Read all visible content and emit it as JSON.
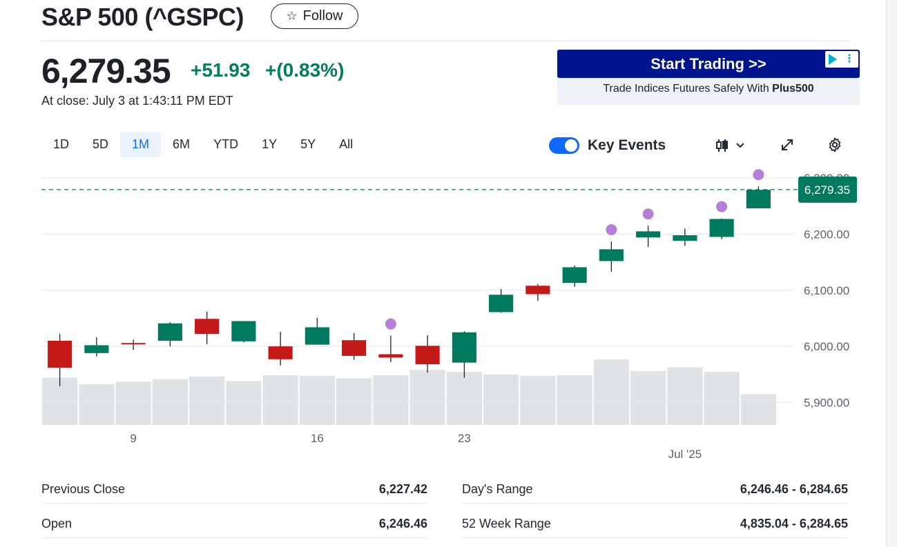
{
  "header": {
    "title": "S&P 500 (^GSPC)",
    "follow_label": "Follow"
  },
  "quote": {
    "price": "6,279.35",
    "change": "+51.93",
    "change_pct": "+(0.83%)",
    "close_time": "At close: July 3 at 1:43:11 PM EDT"
  },
  "ad": {
    "headline": "Start Trading >>",
    "subline_prefix": "Trade Indices Futures Safely With ",
    "subline_brand": "Plus500"
  },
  "ranges": [
    "1D",
    "5D",
    "1M",
    "6M",
    "YTD",
    "1Y",
    "5Y",
    "All"
  ],
  "active_range": "1M",
  "toolbar": {
    "key_events_label": "Key Events",
    "key_events_on": true
  },
  "colors": {
    "up": "#007a5e",
    "down": "#c61a1a",
    "event": "#b57fd9",
    "volume": "#e0e3e6",
    "grid": "#e6e8ea",
    "accent": "#0f69ff"
  },
  "chart_data": {
    "type": "candlestick",
    "ylim": [
      5860,
      6305
    ],
    "y_ticks": [
      "6,300.00",
      "6,200.00",
      "6,100.00",
      "6,000.00",
      "5,900.00"
    ],
    "y_tick_values": [
      6300,
      6200,
      6100,
      6000,
      5900
    ],
    "current_price_label": "6,279.35",
    "current_price": 6279.35,
    "x_labels": [
      {
        "label": "9",
        "index": 2.5
      },
      {
        "label": "16",
        "index": 7.5
      },
      {
        "label": "23",
        "index": 11.5
      },
      {
        "label": "Jul '25",
        "index": 17.5
      }
    ],
    "candles": [
      {
        "o": 6010,
        "h": 6022,
        "l": 5929,
        "c": 5962
      },
      {
        "o": 5988,
        "h": 6016,
        "l": 5982,
        "c": 6002
      },
      {
        "o": 6006,
        "h": 6012,
        "l": 5994,
        "c": 6004
      },
      {
        "o": 6010,
        "h": 6043,
        "l": 6000,
        "c": 6041
      },
      {
        "o": 6049,
        "h": 6062,
        "l": 6004,
        "c": 6022
      },
      {
        "o": 6009,
        "h": 6044,
        "l": 6007,
        "c": 6045
      },
      {
        "o": 6000,
        "h": 6026,
        "l": 5966,
        "c": 5977
      },
      {
        "o": 6003,
        "h": 6051,
        "l": 6003,
        "c": 6034
      },
      {
        "o": 6011,
        "h": 6024,
        "l": 5976,
        "c": 5983
      },
      {
        "o": 5986,
        "h": 6019,
        "l": 5972,
        "c": 5980
      },
      {
        "o": 6001,
        "h": 6020,
        "l": 5953,
        "c": 5968
      },
      {
        "o": 5971,
        "h": 6027,
        "l": 5944,
        "c": 6025
      },
      {
        "o": 6061,
        "h": 6102,
        "l": 6060,
        "c": 6092
      },
      {
        "o": 6108,
        "h": 6111,
        "l": 6081,
        "c": 6093
      },
      {
        "o": 6113,
        "h": 6144,
        "l": 6106,
        "c": 6141
      },
      {
        "o": 6152,
        "h": 6187,
        "l": 6133,
        "c": 6173
      },
      {
        "o": 6194,
        "h": 6215,
        "l": 6177,
        "c": 6205
      },
      {
        "o": 6188,
        "h": 6210,
        "l": 6179,
        "c": 6198
      },
      {
        "o": 6195,
        "h": 6228,
        "l": 6191,
        "c": 6227
      },
      {
        "o": 6246,
        "h": 6285,
        "l": 6246,
        "c": 6279
      }
    ],
    "volume_rel": [
      0.72,
      0.62,
      0.66,
      0.7,
      0.74,
      0.67,
      0.76,
      0.75,
      0.71,
      0.76,
      0.84,
      0.81,
      0.77,
      0.75,
      0.76,
      1.0,
      0.82,
      0.88,
      0.81,
      0.47
    ],
    "events": [
      9,
      15,
      16,
      18,
      19
    ]
  },
  "stats": [
    {
      "label": "Previous Close",
      "value": "6,227.42"
    },
    {
      "label": "Day's Range",
      "value": "6,246.46 - 6,284.65"
    },
    {
      "label": "Open",
      "value": "6,246.46"
    },
    {
      "label": "52 Week Range",
      "value": "4,835.04 - 6,284.65"
    }
  ]
}
